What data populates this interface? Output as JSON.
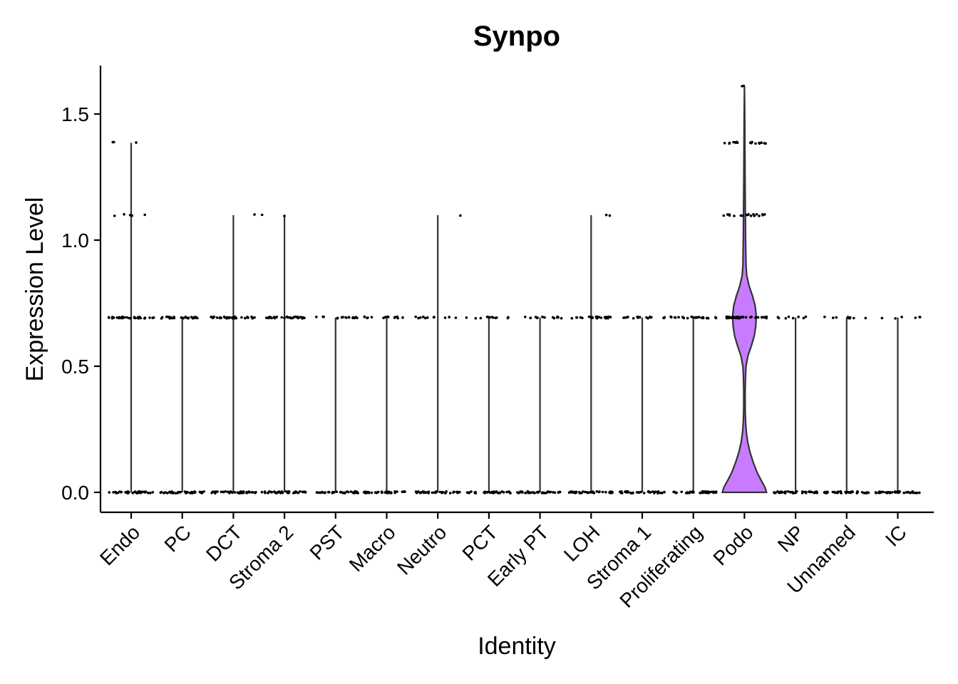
{
  "chart_data": {
    "type": "violin",
    "title": "Synpo",
    "xlabel": "Identity",
    "ylabel": "Expression Level",
    "ylim": [
      -0.075,
      1.68
    ],
    "yticks": [
      0.0,
      0.5,
      1.0,
      1.5
    ],
    "ytick_labels": [
      "0.0",
      "0.5",
      "1.0",
      "1.5"
    ],
    "grid": false,
    "legend": "none",
    "categories": [
      "Endo",
      "PC",
      "DCT",
      "Stroma 2",
      "PST",
      "Macro",
      "Neutro",
      "PCT",
      "Early PT",
      "LOH",
      "Stroma 1",
      "Proliferating",
      "Podo",
      "NP",
      "Unnamed",
      "IC"
    ],
    "violin_max": [
      1.386,
      0.693,
      1.099,
      1.099,
      0.693,
      0.693,
      1.099,
      0.693,
      0.693,
      1.099,
      0.693,
      0.693,
      1.609,
      0.693,
      0.693,
      0.693
    ],
    "fill_colors": [
      "#F8766D",
      "#E58700",
      "#C99800",
      "#A3A500",
      "#6BB100",
      "#00BA38",
      "#00BF7D",
      "#00C0AF",
      "#00BCD8",
      "#00B0F6",
      "#619CFF",
      "#B983FF",
      "#C77CFF",
      "#E76BF3",
      "#FD61D1",
      "#FF67A4"
    ],
    "point_levels": [
      [
        {
          "y": 0,
          "count": 40
        },
        {
          "y": 0.693,
          "count": 34
        },
        {
          "y": 1.099,
          "count": 5
        },
        {
          "y": 1.386,
          "count": 3
        }
      ],
      [
        {
          "y": 0,
          "count": 38
        },
        {
          "y": 0.693,
          "count": 26
        }
      ],
      [
        {
          "y": 0,
          "count": 40
        },
        {
          "y": 0.693,
          "count": 34
        },
        {
          "y": 1.099,
          "count": 1
        }
      ],
      [
        {
          "y": 0,
          "count": 40
        },
        {
          "y": 0.693,
          "count": 30
        },
        {
          "y": 1.099,
          "count": 2
        }
      ],
      [
        {
          "y": 0,
          "count": 38
        },
        {
          "y": 0.693,
          "count": 16
        }
      ],
      [
        {
          "y": 0,
          "count": 38
        },
        {
          "y": 0.693,
          "count": 14
        }
      ],
      [
        {
          "y": 0,
          "count": 38
        },
        {
          "y": 0.693,
          "count": 12
        },
        {
          "y": 1.099,
          "count": 1
        }
      ],
      [
        {
          "y": 0,
          "count": 38
        },
        {
          "y": 0.693,
          "count": 12
        }
      ],
      [
        {
          "y": 0,
          "count": 38
        },
        {
          "y": 0.693,
          "count": 14
        }
      ],
      [
        {
          "y": 0,
          "count": 40
        },
        {
          "y": 0.693,
          "count": 22
        },
        {
          "y": 1.099,
          "count": 2
        }
      ],
      [
        {
          "y": 0,
          "count": 38
        },
        {
          "y": 0.693,
          "count": 18
        }
      ],
      [
        {
          "y": 0,
          "count": 40
        },
        {
          "y": 0.693,
          "count": 26
        }
      ],
      [
        {
          "y": 0.693,
          "count": 40
        },
        {
          "y": 1.099,
          "count": 18
        },
        {
          "y": 1.386,
          "count": 18
        },
        {
          "y": 1.609,
          "count": 2
        }
      ],
      [
        {
          "y": 0,
          "count": 40
        },
        {
          "y": 0.693,
          "count": 8
        }
      ],
      [
        {
          "y": 0,
          "count": 38
        },
        {
          "y": 0.693,
          "count": 10
        }
      ],
      [
        {
          "y": 0,
          "count": 40
        },
        {
          "y": 0.693,
          "count": 6
        }
      ]
    ],
    "podo_density": {
      "y": [
        0,
        0.02,
        0.05,
        0.08,
        0.12,
        0.16,
        0.2,
        0.24,
        0.28,
        0.32,
        0.36,
        0.4,
        0.44,
        0.48,
        0.5,
        0.54,
        0.58,
        0.62,
        0.66,
        0.7,
        0.74,
        0.78,
        0.82,
        0.86,
        0.9,
        1.0,
        1.1,
        1.2,
        1.3,
        1.4,
        1.5,
        1.609
      ],
      "half_width": [
        0.97,
        0.9,
        0.72,
        0.55,
        0.38,
        0.24,
        0.14,
        0.08,
        0.05,
        0.035,
        0.03,
        0.032,
        0.04,
        0.055,
        0.07,
        0.15,
        0.3,
        0.43,
        0.5,
        0.52,
        0.47,
        0.35,
        0.2,
        0.1,
        0.07,
        0.05,
        0.04,
        0.03,
        0.025,
        0.02,
        0.012,
        0
      ]
    }
  }
}
